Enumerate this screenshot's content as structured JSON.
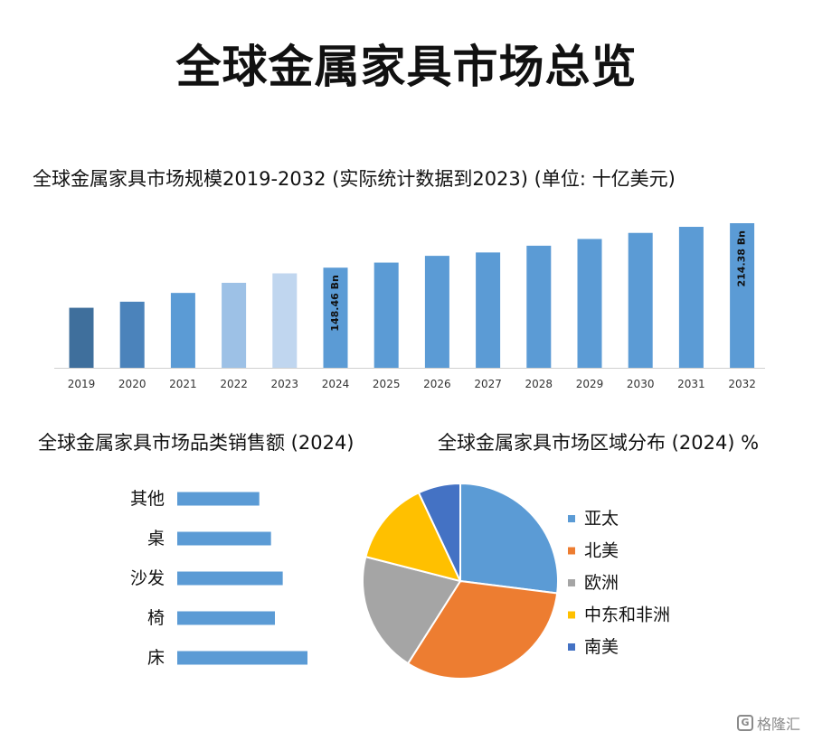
{
  "title": "全球金属家具市场总览",
  "watermark": {
    "icon": "G",
    "text": "格隆汇"
  },
  "chart_data": [
    {
      "type": "bar",
      "title": "全球金属家具市场规模2019-2032 (实际统计数据到2023) (单位: 十亿美元)",
      "categories": [
        "2019",
        "2020",
        "2021",
        "2022",
        "2023",
        "2024",
        "2025",
        "2026",
        "2027",
        "2028",
        "2029",
        "2030",
        "2031",
        "2032"
      ],
      "values": [
        89,
        98,
        111,
        126,
        140,
        148.46,
        156,
        166,
        171,
        181,
        191,
        200,
        209,
        214.38
      ],
      "data_labels": {
        "5": "148.46 Bn",
        "13": "214.38 Bn"
      },
      "colors": [
        "#3f6f9c",
        "#4b83bb",
        "#5b9bd5",
        "#9dc1e6",
        "#c0d6ef",
        "#5b9bd5",
        "#5b9bd5",
        "#5b9bd5",
        "#5b9bd5",
        "#5b9bd5",
        "#5b9bd5",
        "#5b9bd5",
        "#5b9bd5",
        "#5b9bd5"
      ],
      "ylim": [
        0,
        214.38
      ],
      "grid": false,
      "legend": "none"
    },
    {
      "type": "bar",
      "orientation": "horizontal",
      "title": "全球金属家具市场品类销售额 (2024)",
      "categories": [
        "其他",
        "桌",
        "沙发",
        "椅",
        "床"
      ],
      "values": [
        63,
        72,
        81,
        75,
        100
      ],
      "color": "#5b9bd5",
      "grid": false,
      "legend": "none"
    },
    {
      "type": "pie",
      "title": "全球金属家具市场区域分布 (2024) %",
      "labels": [
        "亚太",
        "北美",
        "欧洲",
        "中东和非洲",
        "南美"
      ],
      "values": [
        27,
        32,
        20,
        14,
        7
      ],
      "colors": [
        "#5b9bd5",
        "#ed7d31",
        "#a5a5a5",
        "#ffc000",
        "#4472c4"
      ],
      "legend": "right"
    }
  ]
}
